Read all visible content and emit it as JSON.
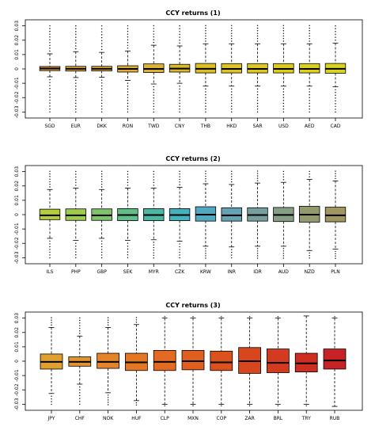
{
  "figure": {
    "background": "#ffffff"
  },
  "chart_data": [
    {
      "type": "box",
      "title": "CCY returns (1)",
      "ylim": [
        -0.032,
        0.032
      ],
      "yticks": [
        {
          "value": 0.03,
          "label": "0.03"
        },
        {
          "value": 0.02,
          "label": "0.02"
        },
        {
          "value": 0.01,
          "label": "0.01"
        },
        {
          "value": 0.0,
          "label": "0"
        },
        {
          "value": -0.01,
          "label": "-0.01"
        },
        {
          "value": -0.02,
          "label": "-0.02"
        },
        {
          "value": -0.03,
          "label": "-0.03"
        }
      ],
      "grid": false,
      "categories": [
        "SGD",
        "EUR",
        "DKK",
        "RON",
        "TWD",
        "CNY",
        "THB",
        "HKD",
        "SAR",
        "USD",
        "AED",
        "CAD"
      ],
      "boxes": [
        {
          "label": "SGD",
          "lo": -0.0055,
          "q1": -0.0012,
          "med": 0.0003,
          "q3": 0.0017,
          "hi": 0.0105,
          "color": "#E09A3A"
        },
        {
          "label": "EUR",
          "lo": -0.006,
          "q1": -0.0015,
          "med": 0.0001,
          "q3": 0.0018,
          "hi": 0.012,
          "color": "#E0A23A"
        },
        {
          "label": "DKK",
          "lo": -0.0058,
          "q1": -0.0014,
          "med": 0.0001,
          "q3": 0.0018,
          "hi": 0.0115,
          "color": "#E0A83A"
        },
        {
          "label": "RON",
          "lo": -0.008,
          "q1": -0.0022,
          "med": 0.0,
          "q3": 0.0022,
          "hi": 0.0125,
          "color": "#E0AE38"
        },
        {
          "label": "TWD",
          "lo": -0.0105,
          "q1": -0.0025,
          "med": 0.0,
          "q3": 0.0035,
          "hi": 0.0165,
          "color": "#DDB232"
        },
        {
          "label": "CNY",
          "lo": -0.01,
          "q1": -0.0022,
          "med": 0.0002,
          "q3": 0.0032,
          "hi": 0.016,
          "color": "#DDB82C"
        },
        {
          "label": "THB",
          "lo": -0.012,
          "q1": -0.0028,
          "med": 0.0001,
          "q3": 0.0038,
          "hi": 0.0175,
          "color": "#DDBE28"
        },
        {
          "label": "HKD",
          "lo": -0.012,
          "q1": -0.0028,
          "med": 0.0,
          "q3": 0.0037,
          "hi": 0.0175,
          "color": "#DDC426"
        },
        {
          "label": "SAR",
          "lo": -0.012,
          "q1": -0.0028,
          "med": 0.0,
          "q3": 0.0037,
          "hi": 0.0175,
          "color": "#DCC824"
        },
        {
          "label": "USD",
          "lo": -0.012,
          "q1": -0.0028,
          "med": 0.0,
          "q3": 0.0037,
          "hi": 0.0175,
          "color": "#DCCC22"
        },
        {
          "label": "AED",
          "lo": -0.012,
          "q1": -0.0028,
          "med": 0.0,
          "q3": 0.0037,
          "hi": 0.0175,
          "color": "#DBD020"
        },
        {
          "label": "CAD",
          "lo": -0.0125,
          "q1": -0.003,
          "med": 0.0001,
          "q3": 0.0038,
          "hi": 0.018,
          "color": "#DAD420"
        }
      ]
    },
    {
      "type": "box",
      "title": "CCY returns (2)",
      "ylim": [
        -0.032,
        0.032
      ],
      "yticks": [
        {
          "value": 0.03,
          "label": "0.03"
        },
        {
          "value": 0.02,
          "label": "0.02"
        },
        {
          "value": 0.01,
          "label": "0.01"
        },
        {
          "value": 0.0,
          "label": "0"
        },
        {
          "value": -0.01,
          "label": "-0.01"
        },
        {
          "value": -0.02,
          "label": "-0.02"
        },
        {
          "value": -0.03,
          "label": "-0.03"
        }
      ],
      "grid": false,
      "categories": [
        "ILS",
        "PHP",
        "GBP",
        "SEK",
        "MYR",
        "CZK",
        "KRW",
        "INR",
        "IDR",
        "AUD",
        "NZD",
        "PLN"
      ],
      "boxes": [
        {
          "label": "ILS",
          "lo": -0.0165,
          "q1": -0.0035,
          "med": -0.0005,
          "q3": 0.0038,
          "hi": 0.0175,
          "color": "#B2CE3A"
        },
        {
          "label": "PHP",
          "lo": -0.018,
          "q1": -0.004,
          "med": -0.0005,
          "q3": 0.004,
          "hi": 0.0185,
          "color": "#9ECB4A"
        },
        {
          "label": "GBP",
          "lo": -0.0165,
          "q1": -0.004,
          "med": -0.0005,
          "q3": 0.004,
          "hi": 0.0175,
          "color": "#7FC46A"
        },
        {
          "label": "SEK",
          "lo": -0.018,
          "q1": -0.0042,
          "med": -0.0003,
          "q3": 0.0042,
          "hi": 0.0185,
          "color": "#62BE88"
        },
        {
          "label": "MYR",
          "lo": -0.0175,
          "q1": -0.0042,
          "med": -0.0003,
          "q3": 0.0042,
          "hi": 0.0185,
          "color": "#4CB8A4"
        },
        {
          "label": "CZK",
          "lo": -0.0185,
          "q1": -0.0042,
          "med": -0.0003,
          "q3": 0.0042,
          "hi": 0.019,
          "color": "#46B2BE"
        },
        {
          "label": "KRW",
          "lo": -0.022,
          "q1": -0.0045,
          "med": 0.0,
          "q3": 0.0055,
          "hi": 0.0215,
          "color": "#52A8C0"
        },
        {
          "label": "INR",
          "lo": -0.0225,
          "q1": -0.0045,
          "med": -0.0005,
          "q3": 0.0048,
          "hi": 0.021,
          "color": "#64A2B4"
        },
        {
          "label": "IDR",
          "lo": -0.022,
          "q1": -0.0045,
          "med": -0.0003,
          "q3": 0.0048,
          "hi": 0.022,
          "color": "#76A09E"
        },
        {
          "label": "AUD",
          "lo": -0.022,
          "q1": -0.0048,
          "med": -0.0002,
          "q3": 0.005,
          "hi": 0.0225,
          "color": "#859E84"
        },
        {
          "label": "NZD",
          "lo": -0.025,
          "q1": -0.0052,
          "med": 0.0,
          "q3": 0.0058,
          "hi": 0.0245,
          "color": "#949A70"
        },
        {
          "label": "PLN",
          "lo": -0.024,
          "q1": -0.005,
          "med": -0.0005,
          "q3": 0.0052,
          "hi": 0.0235,
          "color": "#A09660"
        }
      ]
    },
    {
      "type": "box",
      "title": "CCY returns (3)",
      "ylim": [
        -0.032,
        0.032
      ],
      "yticks": [
        {
          "value": 0.03,
          "label": "0.03"
        },
        {
          "value": 0.02,
          "label": "0.02"
        },
        {
          "value": 0.01,
          "label": "0.01"
        },
        {
          "value": 0.0,
          "label": "0"
        },
        {
          "value": -0.01,
          "label": "-0.01"
        },
        {
          "value": -0.02,
          "label": "-0.02"
        },
        {
          "value": -0.03,
          "label": "-0.03"
        }
      ],
      "grid": false,
      "categories": [
        "JPY",
        "CHF",
        "NOK",
        "HUF",
        "CLP",
        "MXN",
        "COP",
        "ZAR",
        "BRL",
        "TRY",
        "RUB"
      ],
      "boxes": [
        {
          "label": "JPY",
          "lo": -0.0225,
          "q1": -0.0055,
          "med": -0.0005,
          "q3": 0.005,
          "hi": 0.0235,
          "color": "#E0A030"
        },
        {
          "label": "CHF",
          "lo": -0.016,
          "q1": -0.0035,
          "med": -0.0005,
          "q3": 0.003,
          "hi": 0.0175,
          "color": "#E3922C"
        },
        {
          "label": "NOK",
          "lo": -0.022,
          "q1": -0.005,
          "med": -0.0005,
          "q3": 0.0055,
          "hi": 0.0235,
          "color": "#E48428"
        },
        {
          "label": "HUF",
          "lo": -0.0275,
          "q1": -0.0065,
          "med": -0.0008,
          "q3": 0.0055,
          "hi": 0.0255,
          "color": "#E47624"
        },
        {
          "label": "CLP",
          "lo": -0.03,
          "q1": -0.0065,
          "med": -0.0005,
          "q3": 0.0075,
          "hi": 0.03,
          "color": "#E36A20"
        },
        {
          "label": "MXN",
          "lo": -0.03,
          "q1": -0.006,
          "med": 0.0,
          "q3": 0.0075,
          "hi": 0.03,
          "color": "#E05E1E"
        },
        {
          "label": "COP",
          "lo": -0.03,
          "q1": -0.0065,
          "med": -0.0008,
          "q3": 0.007,
          "hi": 0.03,
          "color": "#DC521E"
        },
        {
          "label": "ZAR",
          "lo": -0.03,
          "q1": -0.0085,
          "med": 0.0,
          "q3": 0.0095,
          "hi": 0.03,
          "color": "#D8461E"
        },
        {
          "label": "BRL",
          "lo": -0.03,
          "q1": -0.008,
          "med": -0.0012,
          "q3": 0.0085,
          "hi": 0.03,
          "color": "#D43A20"
        },
        {
          "label": "TRY",
          "lo": -0.03,
          "q1": -0.0075,
          "med": -0.0015,
          "q3": 0.0055,
          "hi": 0.0315,
          "color": "#CE2E22"
        },
        {
          "label": "RUB",
          "lo": -0.0315,
          "q1": -0.0055,
          "med": 0.0005,
          "q3": 0.0085,
          "hi": 0.03,
          "color": "#C82226"
        }
      ]
    }
  ]
}
